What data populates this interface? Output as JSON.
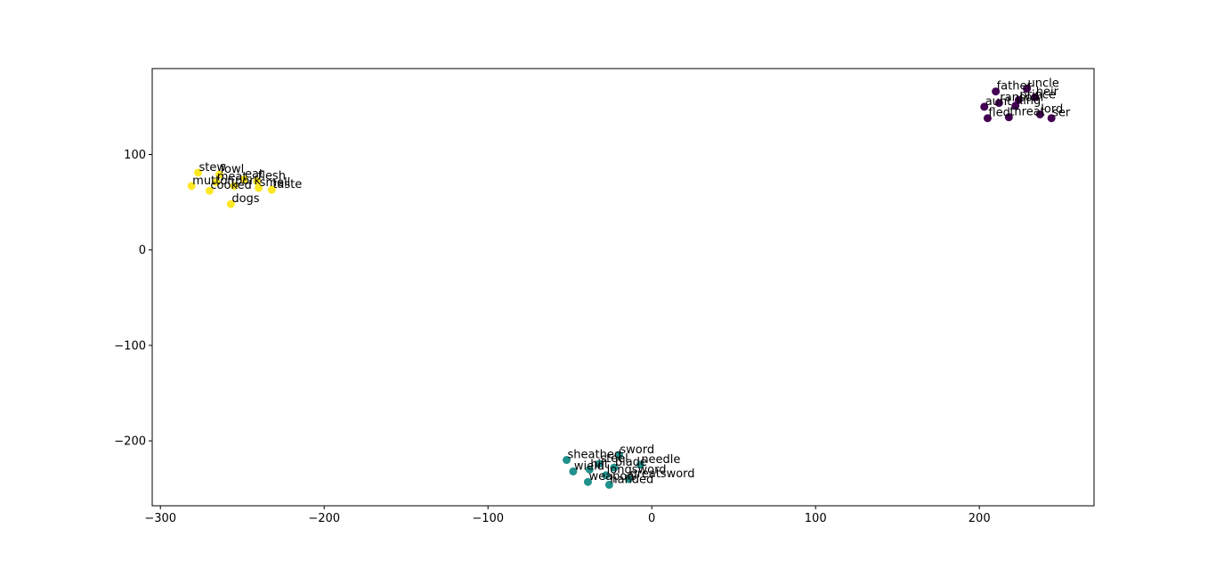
{
  "chart_data": {
    "type": "scatter",
    "title": "",
    "xlabel": "",
    "ylabel": "",
    "xlim": [
      -305,
      270
    ],
    "ylim": [
      -268,
      190
    ],
    "grid": false,
    "x_ticks": [
      -300,
      -200,
      -100,
      0,
      100,
      200
    ],
    "x_tick_labels": [
      "−300",
      "−200",
      "−100",
      "0",
      "100",
      "200"
    ],
    "y_ticks": [
      -200,
      -100,
      0,
      100
    ],
    "y_tick_labels": [
      "−200",
      "−100",
      "0",
      "100"
    ],
    "colors": {
      "cluster_0": "#440154",
      "cluster_1": "#21918c",
      "cluster_2": "#fde725"
    },
    "series": [
      {
        "color": "#440154",
        "points": [
          {
            "label": "uncle",
            "x": 229,
            "y": 169
          },
          {
            "label": "father",
            "x": 210,
            "y": 166
          },
          {
            "label": "heir",
            "x": 234,
            "y": 160
          },
          {
            "label": "prince",
            "x": 224,
            "y": 157
          },
          {
            "label": "ransom",
            "x": 212,
            "y": 154
          },
          {
            "label": "king",
            "x": 222,
            "y": 151
          },
          {
            "label": "aunt",
            "x": 203,
            "y": 150
          },
          {
            "label": "lord",
            "x": 237,
            "y": 142
          },
          {
            "label": "fled",
            "x": 205,
            "y": 138
          },
          {
            "label": "threat",
            "x": 218,
            "y": 139
          },
          {
            "label": "ser",
            "x": 244,
            "y": 138
          }
        ]
      },
      {
        "color": "#21918c",
        "points": [
          {
            "label": "sword",
            "x": -20,
            "y": -215
          },
          {
            "label": "sheathed",
            "x": -52,
            "y": -220
          },
          {
            "label": "steel",
            "x": -32,
            "y": -224
          },
          {
            "label": "needle",
            "x": -7,
            "y": -225
          },
          {
            "label": "blade",
            "x": -23,
            "y": -228
          },
          {
            "label": "hilt",
            "x": -38,
            "y": -230
          },
          {
            "label": "wield",
            "x": -48,
            "y": -232
          },
          {
            "label": "longsword",
            "x": -28,
            "y": -236
          },
          {
            "label": "greatsword",
            "x": -14,
            "y": -240
          },
          {
            "label": "weapon",
            "x": -39,
            "y": -243
          },
          {
            "label": "handed",
            "x": -26,
            "y": -246
          }
        ]
      },
      {
        "color": "#fde725",
        "points": [
          {
            "label": "stew",
            "x": -277,
            "y": 81
          },
          {
            "label": "fowl",
            "x": -264,
            "y": 79
          },
          {
            "label": "eat",
            "x": -249,
            "y": 74
          },
          {
            "label": "flesh",
            "x": -241,
            "y": 72
          },
          {
            "label": "meat",
            "x": -266,
            "y": 71
          },
          {
            "label": "mutton",
            "x": -281,
            "y": 67
          },
          {
            "label": "cooked",
            "x": -270,
            "y": 62
          },
          {
            "label": "pork",
            "x": -255,
            "y": 67
          },
          {
            "label": "smell",
            "x": -240,
            "y": 65
          },
          {
            "label": "taste",
            "x": -232,
            "y": 63
          },
          {
            "label": "dogs",
            "x": -257,
            "y": 48
          }
        ]
      }
    ]
  }
}
